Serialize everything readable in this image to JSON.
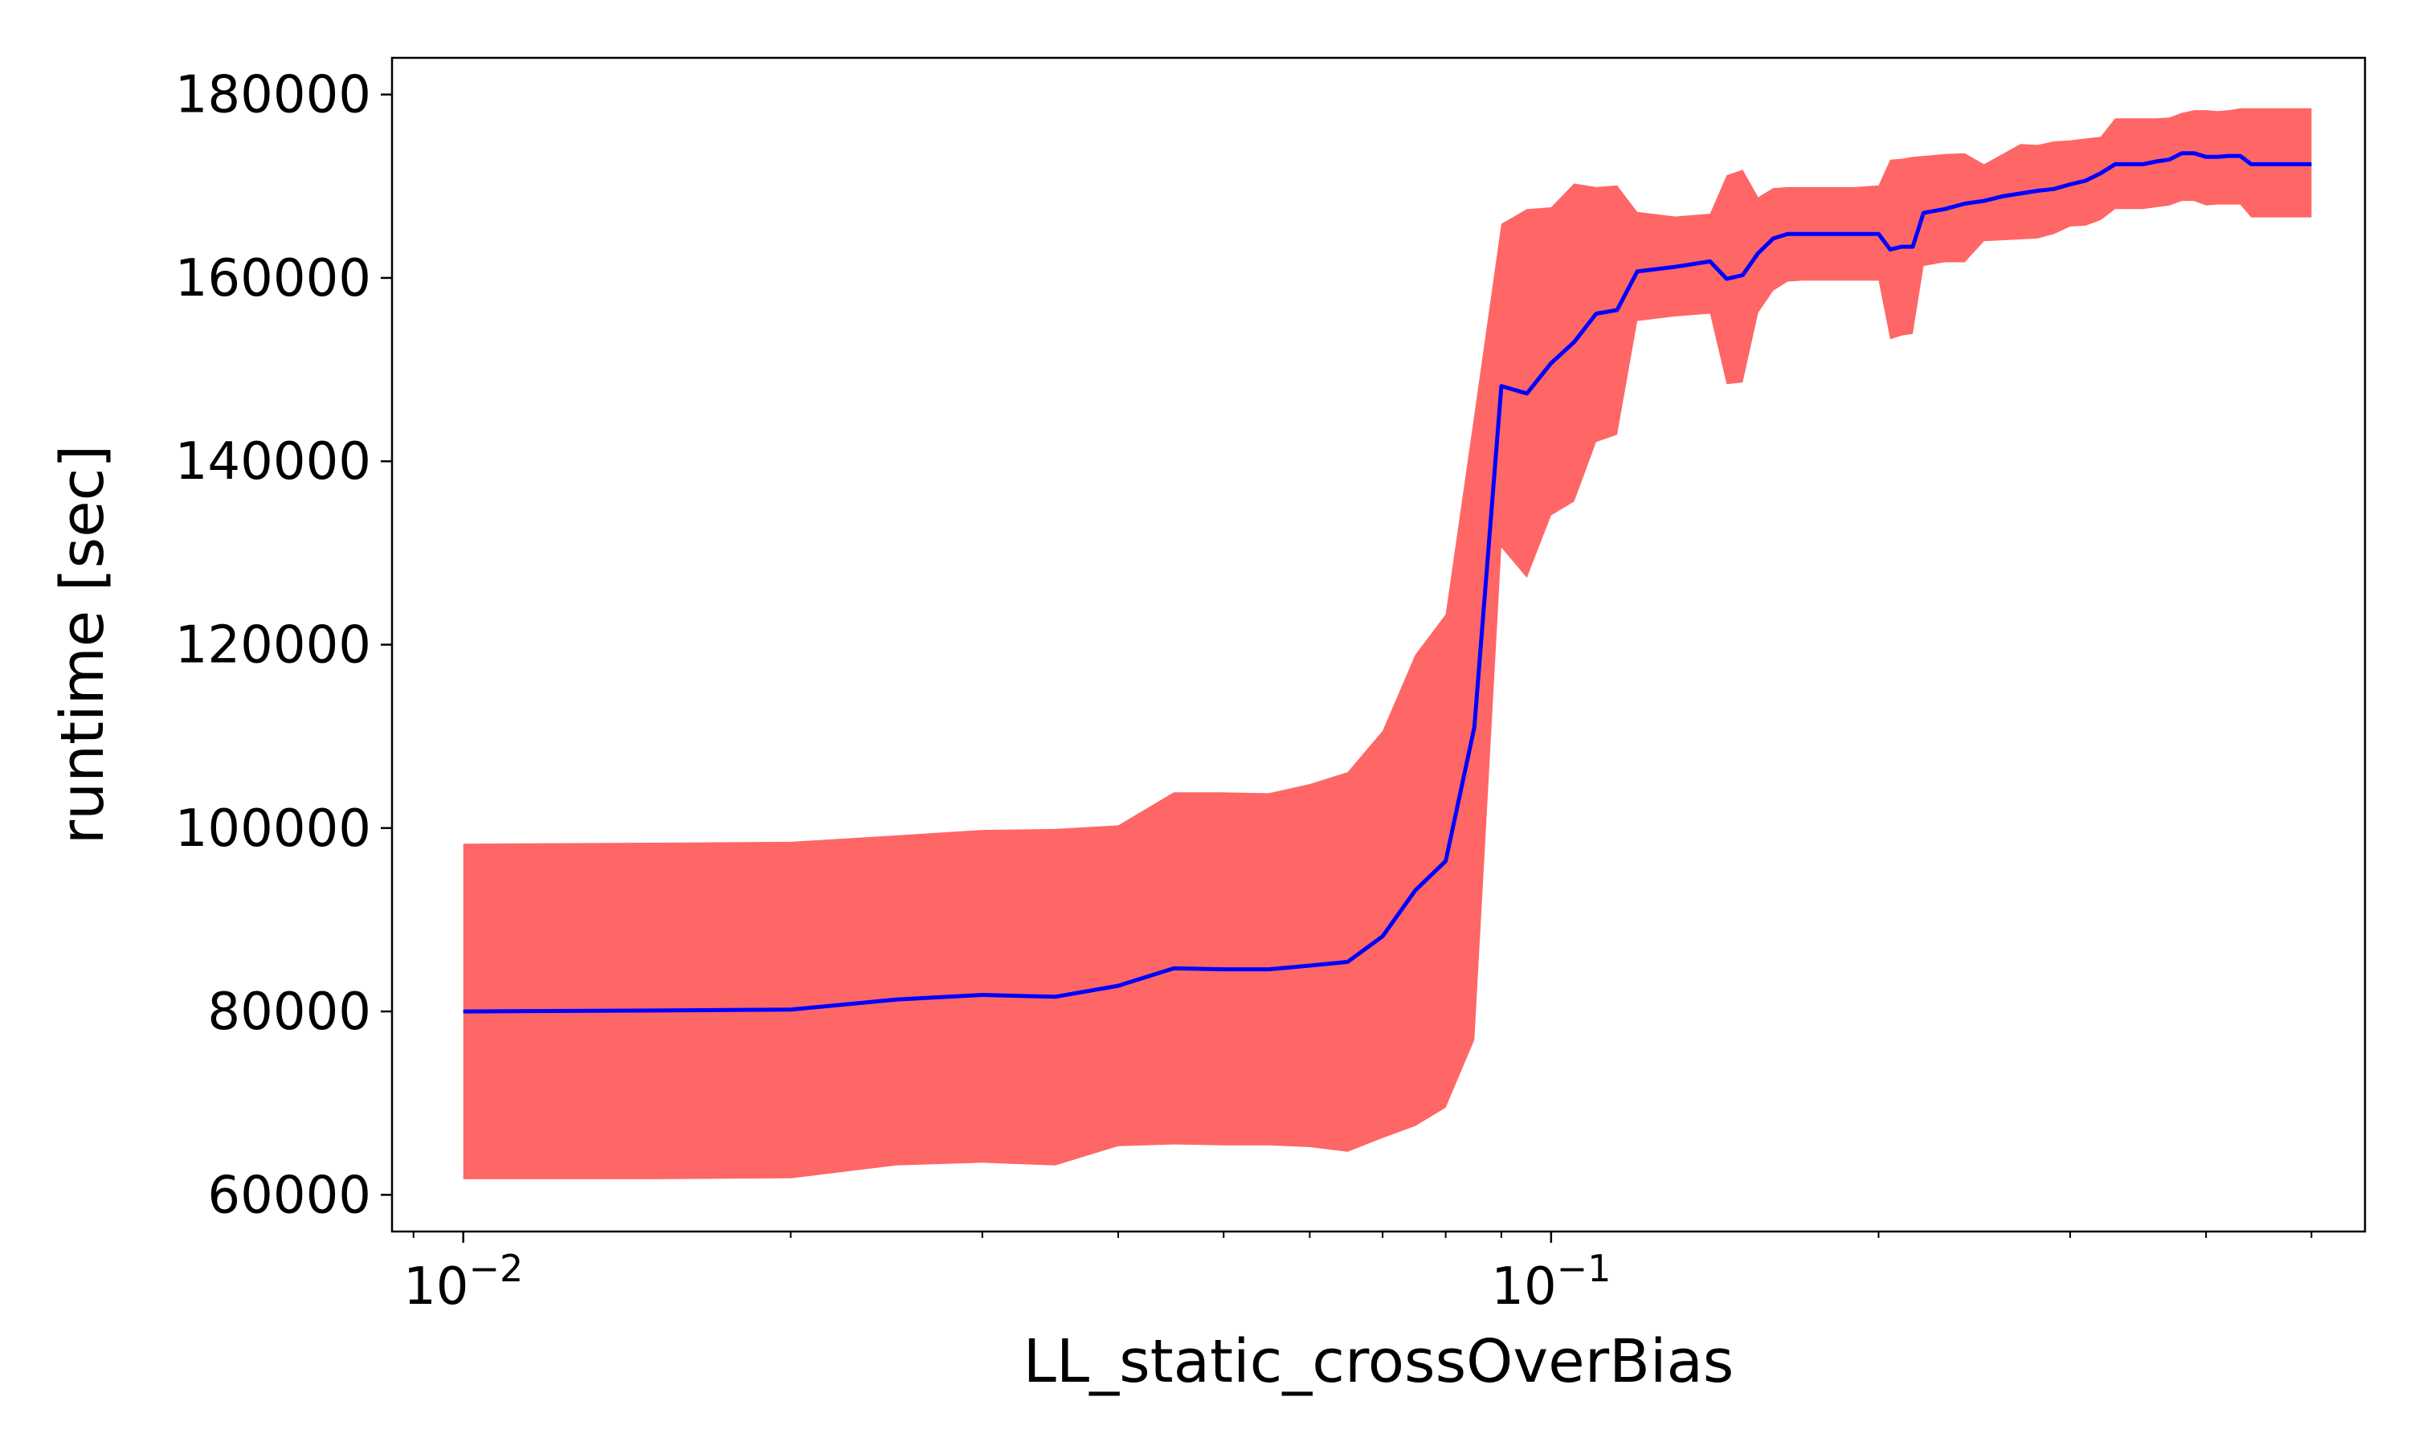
{
  "chart_data": {
    "type": "line",
    "title": "",
    "xlabel": "LL_static_crossOverBias",
    "ylabel": "runtime [sec]",
    "xscale": "log",
    "xlim": [
      0.0086,
      0.56
    ],
    "ylim": [
      56000,
      184000
    ],
    "grid": false,
    "legend": "none",
    "colors": {
      "line": "#0000ff",
      "band": "#ff6666",
      "axes": "#000000"
    },
    "y_ticks": [
      {
        "value": 60000,
        "label": "60000"
      },
      {
        "value": 80000,
        "label": "80000"
      },
      {
        "value": 100000,
        "label": "100000"
      },
      {
        "value": 120000,
        "label": "120000"
      },
      {
        "value": 140000,
        "label": "140000"
      },
      {
        "value": 160000,
        "label": "160000"
      },
      {
        "value": 180000,
        "label": "180000"
      }
    ],
    "x_major_ticks": [
      {
        "value": 0.01,
        "base": "10",
        "exp": "−2"
      },
      {
        "value": 0.1,
        "base": "10",
        "exp": "−1"
      }
    ],
    "x_minor_ticks": [
      0.009,
      0.02,
      0.03,
      0.04,
      0.05,
      0.06,
      0.07,
      0.08,
      0.09,
      0.2,
      0.3,
      0.4,
      0.5
    ],
    "series": [
      {
        "x": [
          0.01,
          0.015,
          0.02,
          0.025,
          0.03,
          0.035,
          0.04,
          0.045,
          0.05,
          0.055,
          0.06,
          0.065,
          0.07,
          0.075,
          0.08,
          0.085,
          0.09,
          0.095,
          0.1,
          0.105,
          0.11,
          0.115,
          0.12,
          0.13,
          0.14,
          0.145,
          0.15,
          0.155,
          0.16,
          0.165,
          0.17,
          0.18,
          0.19,
          0.2,
          0.205,
          0.21,
          0.215,
          0.22,
          0.23,
          0.24,
          0.25,
          0.26,
          0.27,
          0.28,
          0.29,
          0.3,
          0.31,
          0.32,
          0.33,
          0.34,
          0.35,
          0.36,
          0.37,
          0.38,
          0.39,
          0.4,
          0.41,
          0.42,
          0.43,
          0.44,
          0.45,
          0.5
        ],
        "mean": [
          80000,
          80100,
          80200,
          81300,
          81800,
          81600,
          82800,
          84700,
          84600,
          84600,
          85000,
          85400,
          88200,
          93200,
          96400,
          111000,
          148200,
          147400,
          150700,
          153000,
          156100,
          156500,
          160700,
          161200,
          161800,
          159900,
          160300,
          162700,
          164300,
          164800,
          164800,
          164800,
          164800,
          164800,
          163100,
          163400,
          163400,
          167100,
          167500,
          168100,
          168400,
          168900,
          169200,
          169500,
          169700,
          170200,
          170600,
          171400,
          172400,
          172400,
          172400,
          172700,
          172900,
          173600,
          173600,
          173200,
          173200,
          173300,
          173300,
          172400,
          172400,
          172400
        ],
        "upper": [
          98300,
          98400,
          98500,
          99200,
          99800,
          99900,
          100300,
          103900,
          103900,
          103800,
          104800,
          106100,
          110600,
          118900,
          123300,
          145100,
          165900,
          167500,
          167700,
          170300,
          169900,
          170100,
          167200,
          166700,
          167000,
          171200,
          171800,
          168800,
          169800,
          169900,
          169900,
          169900,
          169900,
          170100,
          172900,
          173000,
          173200,
          173300,
          173500,
          173600,
          172400,
          173500,
          174600,
          174500,
          174900,
          175000,
          175200,
          175400,
          177400,
          177400,
          177400,
          177400,
          177500,
          178000,
          178300,
          178300,
          178200,
          178300,
          178500,
          178500,
          178500,
          178500
        ],
        "lower": [
          61700,
          61700,
          61800,
          63200,
          63500,
          63200,
          65300,
          65500,
          65400,
          65400,
          65200,
          64700,
          66200,
          67500,
          69500,
          76900,
          130600,
          127300,
          134100,
          135600,
          142100,
          142900,
          155300,
          155800,
          156100,
          148400,
          148600,
          156200,
          158600,
          159600,
          159700,
          159700,
          159700,
          159700,
          153300,
          153700,
          153900,
          161300,
          161700,
          161700,
          164000,
          164100,
          164200,
          164300,
          164800,
          165600,
          165700,
          166300,
          167500,
          167500,
          167500,
          167700,
          167900,
          168400,
          168400,
          167900,
          168000,
          168000,
          168000,
          166600,
          166600,
          166600
        ]
      }
    ]
  }
}
